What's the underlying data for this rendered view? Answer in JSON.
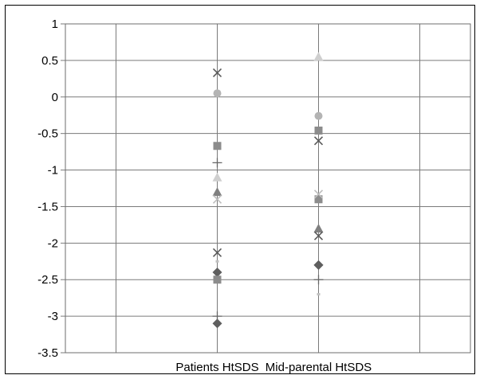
{
  "chart_data": {
    "type": "scatter",
    "categories": [
      "",
      "Patients HtSDS",
      "Mid-parental  HtSDS",
      ""
    ],
    "ylim": [
      -3.5,
      1
    ],
    "yticks": [
      1,
      0.5,
      0,
      -0.5,
      -1,
      -1.5,
      -2,
      -2.5,
      -3,
      -3.5
    ],
    "ytick_labels": [
      "1",
      "0.5",
      "0",
      "-0.5",
      "-1",
      "-1.5",
      "-2",
      "-2.5",
      "-3",
      "-3.5"
    ],
    "grid": true,
    "legend": "none",
    "series": [
      {
        "marker": "diamond",
        "color": "#5f5f5f",
        "values": [
          -3.1,
          -2.3
        ]
      },
      {
        "marker": "diamond",
        "color": "#5f5f5f",
        "values": [
          -2.4,
          -2.3
        ]
      },
      {
        "marker": "square",
        "color": "#8c8c8c",
        "values": [
          -2.5,
          -1.4
        ]
      },
      {
        "marker": "square",
        "color": "#8c8c8c",
        "values": [
          -0.67,
          -0.46
        ]
      },
      {
        "marker": "triangle",
        "color": "#808080",
        "values": [
          -1.3,
          -1.8
        ]
      },
      {
        "marker": "triangle",
        "color": "#cfcfcf",
        "values": [
          -1.1,
          0.55
        ]
      },
      {
        "marker": "x",
        "color": "#5a5a5a",
        "values": [
          0.33,
          -0.6
        ]
      },
      {
        "marker": "x",
        "color": "#5a5a5a",
        "values": [
          -2.13,
          -1.9
        ]
      },
      {
        "marker": "x",
        "color": "#bdbdbd",
        "values": [
          -1.4,
          -1.33
        ]
      },
      {
        "marker": "circle",
        "color": "#b4b4b4",
        "values": [
          0.05,
          -0.26
        ]
      },
      {
        "marker": "plus",
        "color": "#666666",
        "values": [
          -0.9,
          -2.5
        ]
      },
      {
        "marker": "plus",
        "color": "#666666",
        "values": [
          -3.0,
          null
        ]
      },
      {
        "marker": "dash",
        "color": "#c0c0c0",
        "values": [
          -2.25,
          -2.7
        ]
      }
    ]
  }
}
